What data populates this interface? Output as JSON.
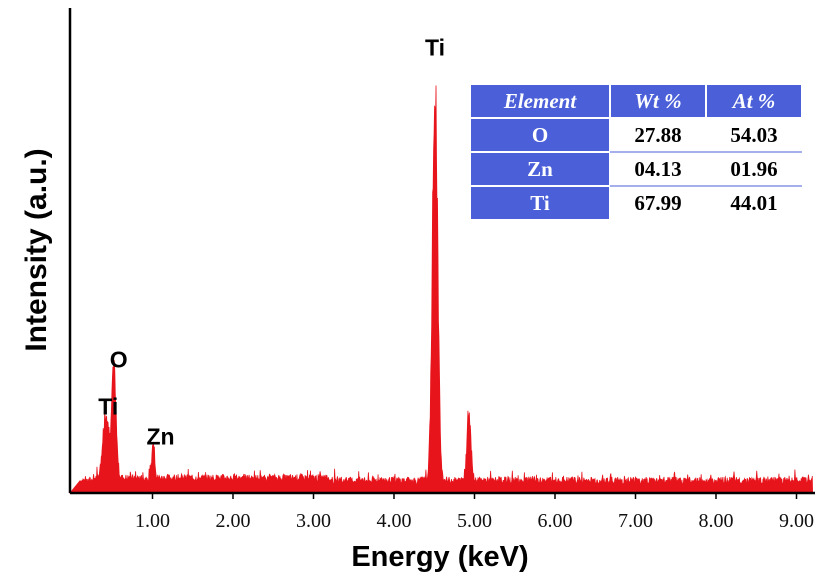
{
  "chart_data": {
    "type": "line",
    "xlabel": "Energy (keV)",
    "ylabel": "Intensity (a.u.)",
    "xlim": [
      0.0,
      9.2
    ],
    "ylim": [
      0,
      1.0
    ],
    "x_ticks": [
      "1.00",
      "2.00",
      "3.00",
      "4.00",
      "5.00",
      "6.00",
      "7.00",
      "8.00",
      "9.00"
    ],
    "x_tick_values": [
      1,
      2,
      3,
      4,
      5,
      6,
      7,
      8,
      9
    ],
    "grid": false,
    "series": [
      {
        "color": "#e8141c",
        "peaks": [
          {
            "x": 0.42,
            "y": 0.16
          },
          {
            "x": 0.52,
            "y": 0.25
          },
          {
            "x": 1.01,
            "y": 0.09
          },
          {
            "x": 4.51,
            "y": 0.99
          },
          {
            "x": 4.93,
            "y": 0.16
          }
        ]
      }
    ],
    "annotations": [
      {
        "text": "Ti",
        "x": 0.45,
        "y": 0.17
      },
      {
        "text": "O",
        "x": 0.58,
        "y": 0.28
      },
      {
        "text": "Zn",
        "x": 1.1,
        "y": 0.1
      },
      {
        "text": "Ti",
        "x": 4.51,
        "y": 1.01
      }
    ],
    "inset_table": {
      "headers": [
        "Element",
        "Wt %",
        "At %"
      ],
      "rows": [
        {
          "element": "O",
          "wt": "27.88",
          "at": "54.03"
        },
        {
          "element": "Zn",
          "wt": "04.13",
          "at": "01.96"
        },
        {
          "element": "Ti",
          "wt": "67.99",
          "at": "44.01"
        }
      ],
      "header_color": "#4a5fd8"
    }
  }
}
